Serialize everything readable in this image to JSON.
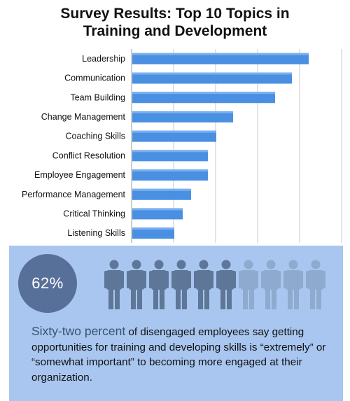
{
  "title": "Survey Results: Top 10 Topics in\nTraining and Development",
  "chart_data": {
    "type": "bar",
    "orientation": "horizontal",
    "categories": [
      "Leadership",
      "Communication",
      "Team Building",
      "Change Management",
      "Coaching Skills",
      "Conflict Resolution",
      "Employee Engagement",
      "Performance Management",
      "Critical Thinking",
      "Listening Skills"
    ],
    "values": [
      21,
      19,
      17,
      12,
      10,
      9,
      9,
      7,
      6,
      5
    ],
    "xlim": [
      0,
      25
    ],
    "x_tick_labels_shown": false,
    "grid": true,
    "bar_color": "#4a90e2"
  },
  "stat": {
    "percent_label": "62%",
    "filled_count": 6,
    "total_count": 10,
    "highlight": "Sixty-two percent",
    "text": " of disengaged employees say getting opportunities for training and developing skills is “extremely” or “somewhat important” to becoming more engaged at their organization."
  },
  "colors": {
    "panel_bg": "#a8c6ef",
    "circle": "#56709a",
    "person_filled": "#5e7697",
    "person_faded": "#8eaace",
    "highlight_text": "#3b5274"
  }
}
